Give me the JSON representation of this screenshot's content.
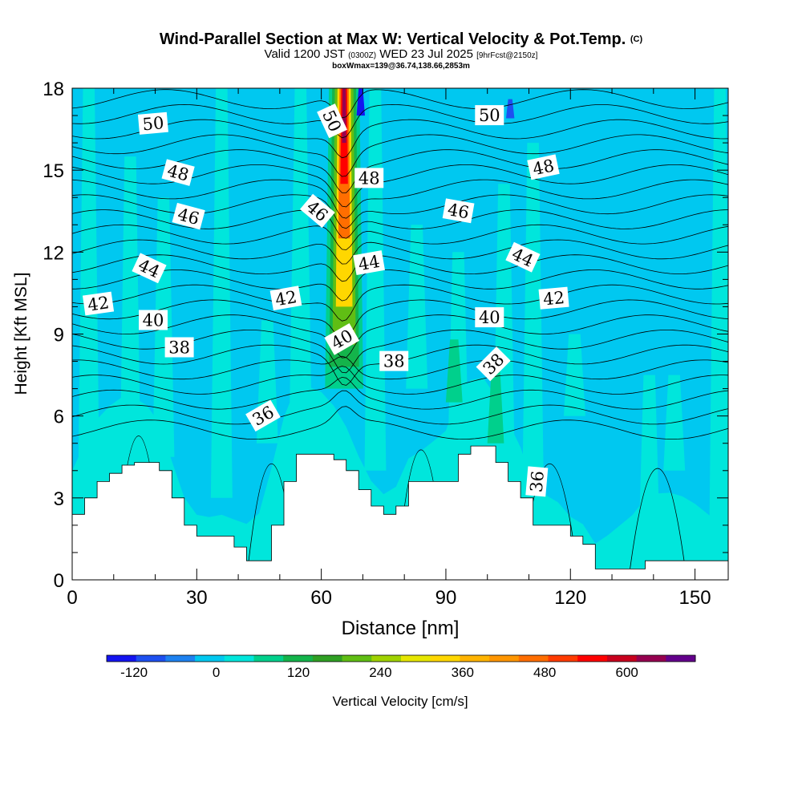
{
  "header": {
    "title": "Wind-Parallel Section at Max W: Vertical Velocity & Pot.Temp.",
    "copyright": "(C)",
    "valid_prefix": "Valid 1200 JST",
    "utc": "(0300Z)",
    "valid_date": "WED 23 Jul 2025",
    "forecast": "[9hrFcst@2150z]",
    "box_info": "boxWmax=139@36.74,138.66,2853m"
  },
  "chart_data": {
    "type": "heatmap",
    "title": "Wind-Parallel Section at Max W: Vertical Velocity & Pot.Temp.",
    "xlabel": "Distance [nm]",
    "ylabel": "Height [Kft MSL]",
    "xlim": [
      0,
      158
    ],
    "ylim": [
      0,
      18
    ],
    "x_ticks": [
      0,
      30,
      60,
      90,
      120,
      150
    ],
    "y_ticks": [
      0,
      3,
      6,
      9,
      12,
      15,
      18
    ],
    "colorbar": {
      "label": "Vertical Velocity [cm/s]",
      "tick_labels": [
        "-120",
        "0",
        "120",
        "240",
        "360",
        "480",
        "600"
      ],
      "tick_values": [
        -120,
        0,
        120,
        240,
        360,
        480,
        600
      ],
      "range": [
        -160,
        700
      ],
      "colors": [
        "#1414f0",
        "#1e50f0",
        "#1e82f0",
        "#00c8f0",
        "#00e6dc",
        "#00d08c",
        "#14b44b",
        "#30a024",
        "#60be14",
        "#a0d200",
        "#e6e600",
        "#ffd700",
        "#ffb400",
        "#ff9600",
        "#ff6e00",
        "#ff3c00",
        "#ff0000",
        "#c8001e",
        "#960050",
        "#64008c"
      ]
    },
    "terrain_profile": {
      "x": [
        0,
        3,
        6,
        9,
        12,
        15,
        18,
        21,
        24,
        27,
        30,
        33,
        36,
        39,
        42,
        45,
        48,
        51,
        54,
        57,
        60,
        63,
        66,
        69,
        72,
        75,
        78,
        81,
        84,
        87,
        90,
        93,
        96,
        99,
        102,
        105,
        108,
        111,
        114,
        117,
        120,
        123,
        126,
        129,
        132,
        135,
        138,
        141,
        144,
        147,
        150,
        153,
        156,
        158
      ],
      "height_kft": [
        2.4,
        3.0,
        3.6,
        3.9,
        4.2,
        4.3,
        4.3,
        4.0,
        3.0,
        2.0,
        1.6,
        1.6,
        1.6,
        1.2,
        0.7,
        0.7,
        2.0,
        3.6,
        4.6,
        4.6,
        4.6,
        4.4,
        4.0,
        3.3,
        2.7,
        2.4,
        2.7,
        3.6,
        3.6,
        3.6,
        3.6,
        4.6,
        4.9,
        4.9,
        4.3,
        3.6,
        3.0,
        2.0,
        2.0,
        2.0,
        1.6,
        1.3,
        0.4,
        0.4,
        0.4,
        0.4,
        0.7,
        0.7,
        0.7,
        0.7,
        0.7,
        0.7,
        0.7,
        0.7
      ]
    },
    "updraft_max": {
      "x_nm": 65.5,
      "max_cm_s": 650
    },
    "isentropes": {
      "field": "Potential temperature",
      "levels": [
        36,
        38,
        40,
        42,
        44,
        46,
        48,
        50
      ],
      "labels": [
        {
          "text": "50",
          "x": 19.5,
          "y": 16.7,
          "angle": -5
        },
        {
          "text": "50",
          "x": 62.5,
          "y": 16.8,
          "angle": 65
        },
        {
          "text": "50",
          "x": 100.5,
          "y": 17.0,
          "angle": 0
        },
        {
          "text": "48",
          "x": 25.5,
          "y": 14.9,
          "angle": 15
        },
        {
          "text": "48",
          "x": 71.5,
          "y": 14.7,
          "angle": 0
        },
        {
          "text": "48",
          "x": 113.5,
          "y": 15.1,
          "angle": -12
        },
        {
          "text": "46",
          "x": 28.0,
          "y": 13.3,
          "angle": 15
        },
        {
          "text": "46",
          "x": 59.0,
          "y": 13.5,
          "angle": 40
        },
        {
          "text": "46",
          "x": 93.0,
          "y": 13.5,
          "angle": 10
        },
        {
          "text": "44",
          "x": 18.5,
          "y": 11.4,
          "angle": 25
        },
        {
          "text": "44",
          "x": 71.5,
          "y": 11.6,
          "angle": -10
        },
        {
          "text": "44",
          "x": 108.5,
          "y": 11.8,
          "angle": 25
        },
        {
          "text": "42",
          "x": 6.3,
          "y": 10.1,
          "angle": -8
        },
        {
          "text": "42",
          "x": 51.5,
          "y": 10.3,
          "angle": -10
        },
        {
          "text": "42",
          "x": 116.0,
          "y": 10.3,
          "angle": -5
        },
        {
          "text": "40",
          "x": 19.5,
          "y": 9.5,
          "angle": 0
        },
        {
          "text": "40",
          "x": 65.0,
          "y": 8.8,
          "angle": -30
        },
        {
          "text": "40",
          "x": 100.5,
          "y": 9.6,
          "angle": 0
        },
        {
          "text": "38",
          "x": 25.8,
          "y": 8.5,
          "angle": 0
        },
        {
          "text": "38",
          "x": 77.5,
          "y": 8.0,
          "angle": 0
        },
        {
          "text": "38",
          "x": 101.5,
          "y": 7.9,
          "angle": -45
        },
        {
          "text": "36",
          "x": 46.0,
          "y": 6.0,
          "angle": -30
        },
        {
          "text": "36",
          "x": 112.0,
          "y": 3.6,
          "angle": -85
        }
      ]
    },
    "grid": false,
    "legend": "colorbar-bottom"
  }
}
